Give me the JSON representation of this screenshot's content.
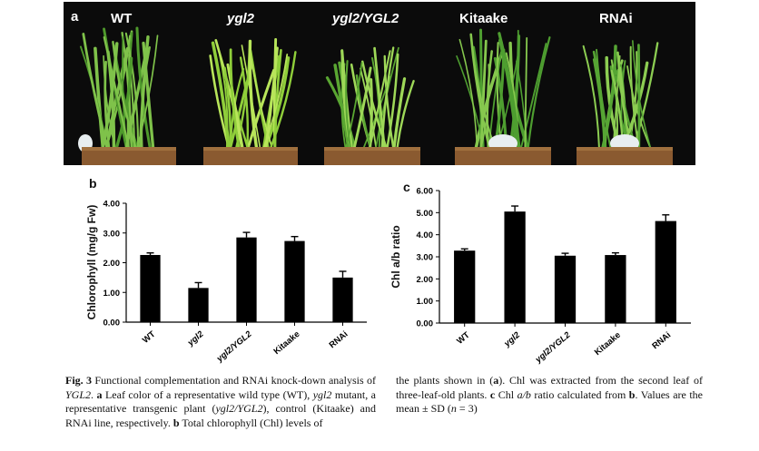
{
  "panel_a": {
    "letter": "a",
    "labels": [
      "WT",
      "ygl2",
      "ygl2/YGL2",
      "Kitaake",
      "RNAi"
    ],
    "italic": [
      false,
      true,
      true,
      false,
      false
    ]
  },
  "chart_data": [
    {
      "type": "bar",
      "letter": "b",
      "ylabel": "Chlorophyll (mg/g Fw)",
      "categories": [
        "WT",
        "ygl2",
        "ygl2/YGL2",
        "Kitaake",
        "RNAi"
      ],
      "values": [
        2.26,
        1.15,
        2.85,
        2.73,
        1.5
      ],
      "errors": [
        0.07,
        0.18,
        0.17,
        0.15,
        0.21
      ],
      "ylim": [
        0,
        4
      ],
      "yticks": [
        "0.00",
        "1.00",
        "2.00",
        "3.00",
        "4.00"
      ],
      "bar_color": "#000000"
    },
    {
      "type": "bar",
      "letter": "c",
      "ylabel": "Chl a/b ratio",
      "categories": [
        "WT",
        "ygl2",
        "ygl2/YGL2",
        "Kitaake",
        "RNAi"
      ],
      "values": [
        3.28,
        5.05,
        3.05,
        3.08,
        4.62
      ],
      "errors": [
        0.08,
        0.25,
        0.11,
        0.1,
        0.28
      ],
      "ylim": [
        0,
        6
      ],
      "yticks": [
        "0.00",
        "1.00",
        "2.00",
        "3.00",
        "4.00",
        "5.00",
        "6.00"
      ],
      "bar_color": "#000000"
    }
  ],
  "caption": {
    "left": [
      {
        "t": "Fig. 3",
        "s": "b"
      },
      {
        "t": " Functional complementation and RNAi knock-down analysis of "
      },
      {
        "t": "YGL2",
        "s": "i"
      },
      {
        "t": ". "
      },
      {
        "t": "a",
        "s": "b"
      },
      {
        "t": " Leaf color of a representative wild type (WT), "
      },
      {
        "t": "ygl2",
        "s": "i"
      },
      {
        "t": " mutant, a representative transgenic plant ("
      },
      {
        "t": "ygl2/YGL2",
        "s": "i"
      },
      {
        "t": "), control (Kitaake) and RNAi line, respectively. "
      },
      {
        "t": "b",
        "s": "b"
      },
      {
        "t": " Total chlorophyll (Chl) levels of"
      }
    ],
    "right": [
      {
        "t": "the plants shown in ("
      },
      {
        "t": "a",
        "s": "b"
      },
      {
        "t": "). Chl was extracted from the second leaf of three-leaf-old plants. "
      },
      {
        "t": "c",
        "s": "b"
      },
      {
        "t": " Chl "
      },
      {
        "t": "a/b",
        "s": "i"
      },
      {
        "t": " ratio calculated from "
      },
      {
        "t": "b",
        "s": "b"
      },
      {
        "t": ". Values are the mean ± SD ("
      },
      {
        "t": "n",
        "s": "i"
      },
      {
        "t": " = 3)"
      }
    ]
  }
}
